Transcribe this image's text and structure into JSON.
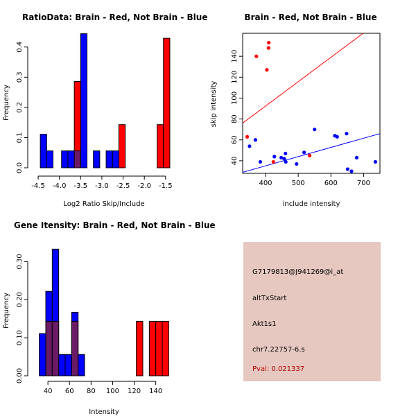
{
  "colors": {
    "red": "#ff0000",
    "blue": "#0000ff",
    "purple": "#6b1a66",
    "panel": "#e6c8c0",
    "pval": "#b30000"
  },
  "chart_data": [
    {
      "type": "bar",
      "title": "RatioData: Brain - Red, Not Brain - Blue",
      "xlabel": "Log2 Ratio Skip/Include",
      "ylabel": "Frequency",
      "xlim": [
        -4.55,
        -1.35
      ],
      "ylim": [
        0,
        0.45
      ],
      "xticks": [
        -4.5,
        -4.0,
        -3.5,
        -3.0,
        -2.5,
        -2.0,
        -1.5
      ],
      "xtick_labels": [
        "-4.5",
        "-4.0",
        "-3.5",
        "-3.0",
        "-2.5",
        "-2.0",
        "-1.5"
      ],
      "yticks": [
        0.0,
        0.1,
        0.2,
        0.3,
        0.4
      ],
      "ytick_labels": [
        "0.0",
        "0.1",
        "0.2",
        "0.3",
        "0.4"
      ],
      "series": [
        {
          "name": "Not Brain",
          "color": "blue",
          "bins": [
            {
              "x0": -4.45,
              "x1": -4.3,
              "y": 0.111
            },
            {
              "x0": -4.3,
              "x1": -4.15,
              "y": 0.056
            },
            {
              "x0": -3.95,
              "x1": -3.8,
              "y": 0.056
            },
            {
              "x0": -3.8,
              "x1": -3.65,
              "y": 0.056
            },
            {
              "x0": -3.65,
              "x1": -3.5,
              "y": 0.056
            },
            {
              "x0": -3.5,
              "x1": -3.35,
              "y": 0.444
            },
            {
              "x0": -3.2,
              "x1": -3.05,
              "y": 0.056
            },
            {
              "x0": -2.9,
              "x1": -2.75,
              "y": 0.056
            },
            {
              "x0": -2.75,
              "x1": -2.6,
              "y": 0.056
            }
          ]
        },
        {
          "name": "Brain",
          "color": "red",
          "bins": [
            {
              "x0": -3.65,
              "x1": -3.5,
              "y": 0.286
            },
            {
              "x0": -2.6,
              "x1": -2.45,
              "y": 0.143
            },
            {
              "x0": -1.7,
              "x1": -1.55,
              "y": 0.143
            },
            {
              "x0": -1.55,
              "x1": -1.4,
              "y": 0.429
            }
          ]
        }
      ]
    },
    {
      "type": "scatter",
      "title": "Brain - Red, Not Brain - Blue",
      "xlabel": "include intensity",
      "ylabel": "skip intensity",
      "xlim": [
        330,
        750
      ],
      "ylim": [
        28,
        162
      ],
      "xticks": [
        400,
        500,
        600,
        700
      ],
      "xtick_labels": [
        "400",
        "500",
        "600",
        "700"
      ],
      "yticks": [
        40,
        60,
        80,
        100,
        120,
        140
      ],
      "ytick_labels": [
        "40",
        "60",
        "80",
        "100",
        "120",
        "140"
      ],
      "series": [
        {
          "name": "Brain",
          "color": "red",
          "points": [
            [
              344,
              63
            ],
            [
              372,
              140
            ],
            [
              404,
              127
            ],
            [
              409,
              148
            ],
            [
              410,
              153
            ],
            [
              424,
              39
            ],
            [
              535,
              45
            ]
          ]
        },
        {
          "name": "Not Brain",
          "color": "blue",
          "points": [
            [
              351,
              54
            ],
            [
              369,
              60
            ],
            [
              384,
              39
            ],
            [
              427,
              44
            ],
            [
              448,
              43
            ],
            [
              457,
              42
            ],
            [
              461,
              47
            ],
            [
              462,
              39
            ],
            [
              495,
              37
            ],
            [
              518,
              48
            ],
            [
              550,
              70
            ],
            [
              612,
              64
            ],
            [
              619,
              63
            ],
            [
              648,
              66
            ],
            [
              651,
              32
            ],
            [
              663,
              30
            ],
            [
              679,
              43
            ],
            [
              736,
              39
            ]
          ]
        }
      ],
      "lines": [
        {
          "name": "Brain fit",
          "color": "red",
          "from": [
            330,
            76
          ],
          "to": [
            750,
            174
          ]
        },
        {
          "name": "Not Brain fit",
          "color": "blue",
          "from": [
            330,
            29
          ],
          "to": [
            750,
            66
          ]
        }
      ]
    },
    {
      "type": "bar",
      "title": "Gene Itensity: Brain - Red, Not Brain - Blue",
      "xlabel": "Intensity",
      "ylabel": "Frequency",
      "xlim": [
        29,
        155
      ],
      "ylim": [
        0,
        0.35
      ],
      "xticks": [
        40,
        60,
        80,
        100,
        120,
        140
      ],
      "xtick_labels": [
        "40",
        "60",
        "80",
        "100",
        "120",
        "140"
      ],
      "yticks": [
        0.0,
        0.1,
        0.2,
        0.3
      ],
      "ytick_labels": [
        "0.00",
        "0.10",
        "0.20",
        "0.30"
      ],
      "series": [
        {
          "name": "Not Brain",
          "color": "blue",
          "bins": [
            {
              "x0": 32,
              "x1": 38,
              "y": 0.111
            },
            {
              "x0": 38,
              "x1": 44,
              "y": 0.222
            },
            {
              "x0": 44,
              "x1": 50,
              "y": 0.333
            },
            {
              "x0": 50,
              "x1": 56,
              "y": 0.056
            },
            {
              "x0": 56,
              "x1": 62,
              "y": 0.056
            },
            {
              "x0": 62,
              "x1": 68,
              "y": 0.167
            },
            {
              "x0": 68,
              "x1": 74,
              "y": 0.056
            }
          ]
        },
        {
          "name": "Brain",
          "color": "red",
          "bins": [
            {
              "x0": 38,
              "x1": 44,
              "y": 0.143
            },
            {
              "x0": 44,
              "x1": 50,
              "y": 0.143
            },
            {
              "x0": 62,
              "x1": 68,
              "y": 0.143
            },
            {
              "x0": 122,
              "x1": 128,
              "y": 0.143
            },
            {
              "x0": 134,
              "x1": 140,
              "y": 0.143
            },
            {
              "x0": 140,
              "x1": 146,
              "y": 0.143
            },
            {
              "x0": 146,
              "x1": 152,
              "y": 0.143
            }
          ]
        }
      ]
    }
  ],
  "info": {
    "probe_id": "G7179813@J941269@i_at",
    "event_type": "altTxStart",
    "gene": "Akt1s1",
    "location": "chr7.22757-6.s",
    "pval": "Pval: 0.021337"
  }
}
